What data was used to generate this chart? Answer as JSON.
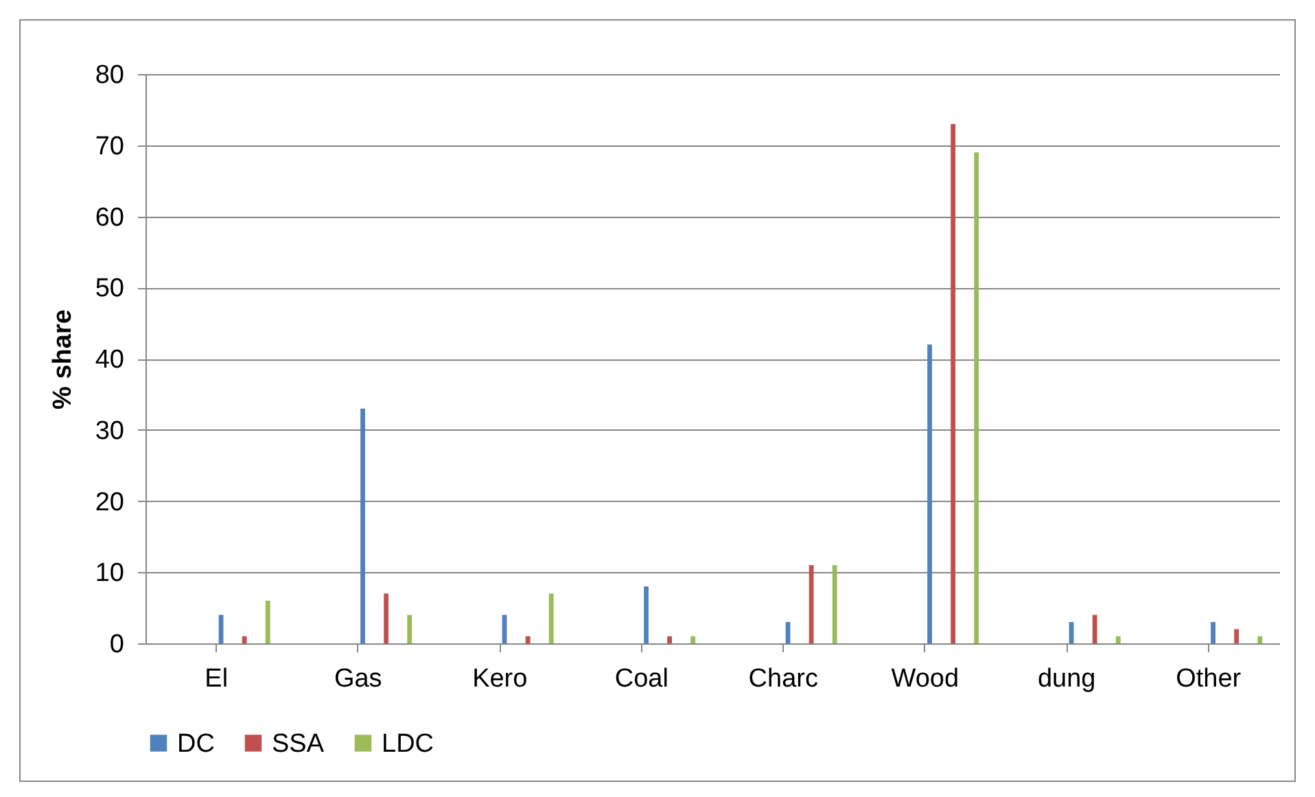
{
  "chart_data": {
    "type": "bar",
    "ylabel": "% share",
    "categories": [
      "El",
      "Gas",
      "Kero",
      "Coal",
      "Charc",
      "Wood",
      "dung",
      "Other"
    ],
    "series": [
      {
        "name": "DC",
        "color": "#4f81bd",
        "values": [
          4,
          33,
          4,
          8,
          3,
          42,
          3,
          3
        ]
      },
      {
        "name": "SSA",
        "color": "#c0504d",
        "values": [
          1,
          7,
          1,
          1,
          11,
          73,
          4,
          2
        ]
      },
      {
        "name": "LDC",
        "color": "#9bbb59",
        "values": [
          6,
          4,
          7,
          1,
          11,
          69,
          1,
          1
        ]
      }
    ],
    "ylim": [
      0,
      80
    ],
    "yticks": [
      0,
      10,
      20,
      30,
      40,
      50,
      60,
      70,
      80
    ],
    "grid": "y",
    "legend": "bottom"
  }
}
